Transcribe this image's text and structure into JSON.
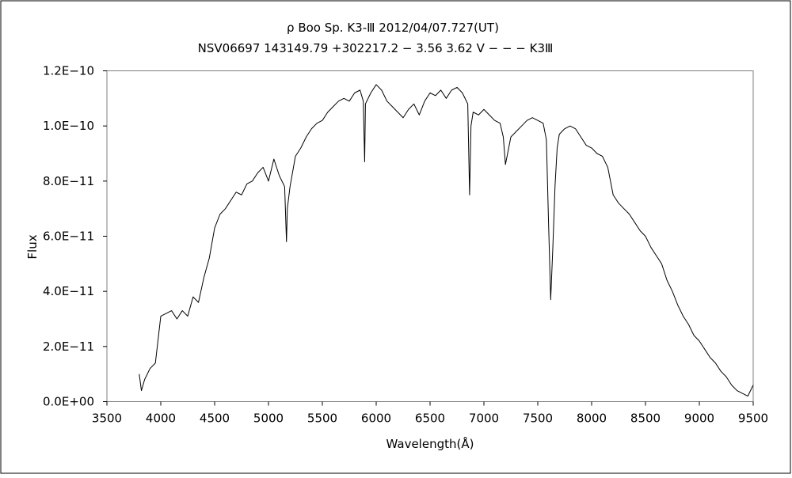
{
  "chart_data": {
    "type": "line",
    "title": "ρ Boo    Sp. K3-Ⅲ   2012/04/07.727(UT)",
    "subtitle": "NSV06697 143149.79 +302217.2 − 3.56 3.62 V − − − K3Ⅲ",
    "xlabel": "Wavelength(Å)",
    "ylabel": "Flux",
    "xlim": [
      3500,
      9500
    ],
    "ylim": [
      0,
      1.2e-10
    ],
    "xticks": [
      3500,
      4000,
      4500,
      5000,
      5500,
      6000,
      6500,
      7000,
      7500,
      8000,
      8500,
      9000,
      9500
    ],
    "xtick_labels": [
      "3500",
      "4000",
      "4500",
      "5000",
      "5500",
      "6000",
      "6500",
      "7000",
      "7500",
      "8000",
      "8500",
      "9000",
      "9500"
    ],
    "yticks": [
      0,
      2e-11,
      4e-11,
      6e-11,
      8e-11,
      1e-10,
      1.2e-10
    ],
    "ytick_labels": [
      "0.0E+00",
      "2.0E−11",
      "4.0E−11",
      "6.0E−11",
      "8.0E−11",
      "1.0E−10",
      "1.2E−10"
    ],
    "grid": false,
    "legend": "none",
    "line_color": "#000000",
    "series": [
      {
        "x": [
          3800,
          3820,
          3850,
          3900,
          3950,
          4000,
          4050,
          4100,
          4150,
          4200,
          4250,
          4300,
          4350,
          4400,
          4450,
          4500,
          4550,
          4600,
          4650,
          4700,
          4750,
          4800,
          4850,
          4900,
          4950,
          5000,
          5050,
          5100,
          5150,
          5167,
          5175,
          5200,
          5250,
          5300,
          5350,
          5400,
          5450,
          5500,
          5550,
          5600,
          5650,
          5700,
          5750,
          5800,
          5850,
          5880,
          5893,
          5900,
          5950,
          6000,
          6050,
          6100,
          6150,
          6200,
          6250,
          6300,
          6350,
          6400,
          6450,
          6500,
          6550,
          6600,
          6650,
          6700,
          6750,
          6800,
          6850,
          6867,
          6880,
          6900,
          6950,
          7000,
          7050,
          7100,
          7150,
          7180,
          7200,
          7250,
          7300,
          7350,
          7400,
          7450,
          7500,
          7550,
          7580,
          7600,
          7620,
          7640,
          7660,
          7680,
          7700,
          7750,
          7800,
          7850,
          7900,
          7950,
          8000,
          8050,
          8100,
          8150,
          8200,
          8250,
          8300,
          8350,
          8400,
          8450,
          8500,
          8550,
          8600,
          8650,
          8700,
          8750,
          8800,
          8850,
          8900,
          8950,
          9000,
          9050,
          9100,
          9150,
          9200,
          9250,
          9300,
          9350,
          9400,
          9450,
          9500
        ],
        "y": [
          1e-11,
          4e-12,
          8e-12,
          1.2e-11,
          1.4e-11,
          3.1e-11,
          3.2e-11,
          3.3e-11,
          3e-11,
          3.3e-11,
          3.1e-11,
          3.8e-11,
          3.6e-11,
          4.5e-11,
          5.2e-11,
          6.3e-11,
          6.8e-11,
          7e-11,
          7.3e-11,
          7.6e-11,
          7.5e-11,
          7.9e-11,
          8e-11,
          8.3e-11,
          8.5e-11,
          8e-11,
          8.8e-11,
          8.2e-11,
          7.8e-11,
          5.8e-11,
          7e-11,
          7.8e-11,
          8.9e-11,
          9.2e-11,
          9.6e-11,
          9.9e-11,
          1.01e-10,
          1.02e-10,
          1.05e-10,
          1.07e-10,
          1.09e-10,
          1.1e-10,
          1.09e-10,
          1.12e-10,
          1.13e-10,
          1.09e-10,
          8.7e-11,
          1.08e-10,
          1.12e-10,
          1.15e-10,
          1.13e-10,
          1.09e-10,
          1.07e-10,
          1.05e-10,
          1.03e-10,
          1.06e-10,
          1.08e-10,
          1.04e-10,
          1.09e-10,
          1.12e-10,
          1.11e-10,
          1.13e-10,
          1.1e-10,
          1.13e-10,
          1.14e-10,
          1.12e-10,
          1.08e-10,
          7.5e-11,
          1e-10,
          1.05e-10,
          1.04e-10,
          1.06e-10,
          1.04e-10,
          1.02e-10,
          1.01e-10,
          9.6e-11,
          8.6e-11,
          9.6e-11,
          9.8e-11,
          1e-10,
          1.02e-10,
          1.03e-10,
          1.02e-10,
          1.01e-10,
          9.5e-11,
          6.5e-11,
          3.7e-11,
          5.6e-11,
          7.8e-11,
          9.2e-11,
          9.7e-11,
          9.9e-11,
          1e-10,
          9.9e-11,
          9.6e-11,
          9.3e-11,
          9.2e-11,
          9e-11,
          8.9e-11,
          8.5e-11,
          7.5e-11,
          7.2e-11,
          7e-11,
          6.8e-11,
          6.5e-11,
          6.2e-11,
          6e-11,
          5.6e-11,
          5.3e-11,
          5e-11,
          4.4e-11,
          4e-11,
          3.5e-11,
          3.1e-11,
          2.8e-11,
          2.4e-11,
          2.2e-11,
          1.9e-11,
          1.6e-11,
          1.4e-11,
          1.1e-11,
          9e-12,
          6e-12,
          4e-12,
          3e-12,
          2e-12,
          6e-12
        ]
      }
    ]
  }
}
